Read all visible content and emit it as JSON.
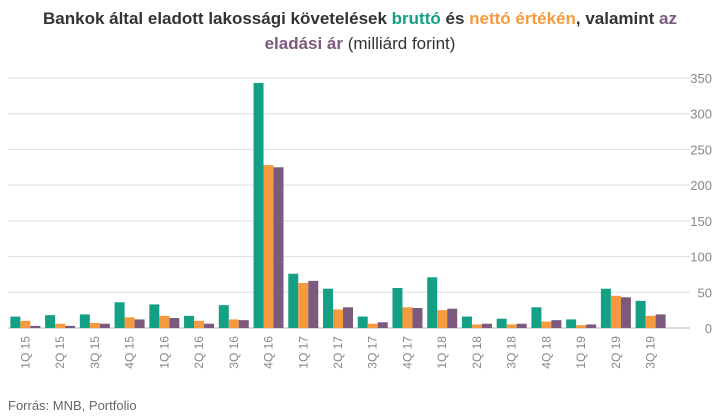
{
  "title": {
    "part1": "Bankok által eladott lakossági követelések ",
    "part2": "bruttó",
    "part3": " és ",
    "part4": "nettó értékén",
    "part5": ", valamint ",
    "part6": "az",
    "part7": "eladási ár",
    "part8": " (milliárd forint)"
  },
  "source": "Forrás: MNB, Portfolio",
  "colors": {
    "brutto": "#14a085",
    "netto": "#f59a3e",
    "eladasi_ar": "#7b5a7e",
    "grid": "#dddddd",
    "axis_text": "#888888"
  },
  "chart_data": {
    "type": "bar",
    "categories": [
      "1Q 15",
      "2Q 15",
      "3Q 15",
      "4Q 15",
      "1Q 16",
      "2Q 16",
      "3Q 16",
      "4Q 16",
      "1Q 17",
      "2Q 17",
      "3Q 17",
      "4Q 17",
      "1Q 18",
      "2Q 18",
      "3Q 18",
      "4Q 18",
      "1Q 19",
      "2Q 19",
      "3Q 19"
    ],
    "series": [
      {
        "name": "bruttó",
        "color": "#14a085",
        "values": [
          16,
          18,
          19,
          36,
          33,
          17,
          32,
          343,
          76,
          55,
          16,
          56,
          71,
          16,
          13,
          29,
          12,
          55,
          38
        ]
      },
      {
        "name": "nettó értékén",
        "color": "#f59a3e",
        "values": [
          10,
          6,
          7,
          15,
          17,
          10,
          12,
          228,
          63,
          26,
          6,
          29,
          25,
          5,
          5,
          9,
          4,
          45,
          17
        ]
      },
      {
        "name": "eladási ár",
        "color": "#7b5a7e",
        "values": [
          3,
          3,
          6,
          12,
          14,
          6,
          11,
          225,
          66,
          29,
          8,
          28,
          27,
          6,
          6,
          11,
          5,
          43,
          19
        ]
      }
    ],
    "yticks": [
      0,
      50,
      100,
      150,
      200,
      250,
      300,
      350
    ],
    "ylim": [
      0,
      350
    ],
    "axis_position": "right",
    "grid": true
  }
}
